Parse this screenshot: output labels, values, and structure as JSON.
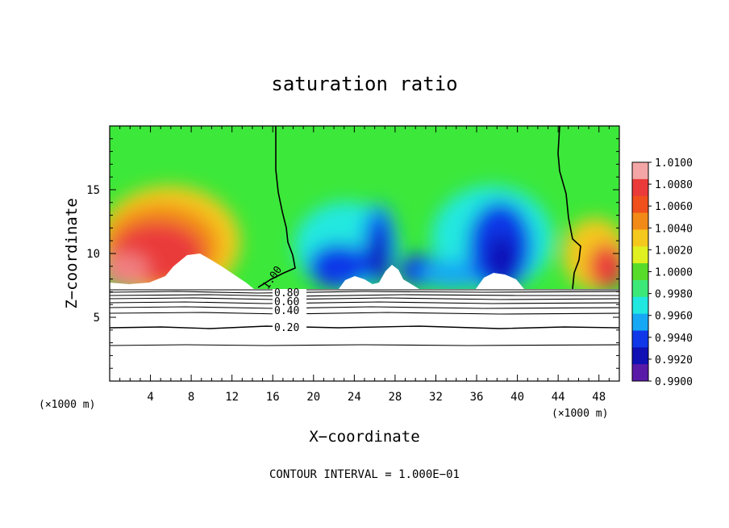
{
  "chart_data": {
    "type": "heatmap",
    "title": "saturation ratio",
    "xlabel": "X−coordinate",
    "ylabel": "Z−coordinate",
    "x_unit": "(×1000 m)",
    "y_unit": "(×1000 m)",
    "xlim": [
      0,
      50
    ],
    "ylim": [
      0,
      20
    ],
    "x_ticks": [
      "4",
      "8",
      "12",
      "16",
      "20",
      "24",
      "28",
      "32",
      "36",
      "40",
      "44",
      "48"
    ],
    "y_ticks": [
      "5",
      "10",
      "15"
    ],
    "colorbar": {
      "min": 0.99,
      "max": 1.01,
      "tick_labels": [
        "1.0100",
        "1.0080",
        "1.0060",
        "1.0040",
        "1.0020",
        "1.0000",
        "0.9980",
        "0.9960",
        "0.9940",
        "0.9920",
        "0.9900"
      ],
      "colors": [
        "#f4a6a6",
        "#ea3a3a",
        "#f0501c",
        "#f28a18",
        "#f5c81e",
        "#e0f020",
        "#58dc2a",
        "#3ce878",
        "#20e8e0",
        "#16a8f4",
        "#1038e8",
        "#1010b4",
        "#5a1aa8"
      ]
    },
    "contour_labels": [
      "1.00",
      "0.80",
      "0.60",
      "0.40",
      "0.20"
    ],
    "contour_levels": [
      0.2,
      0.4,
      0.6,
      0.8,
      1.0
    ],
    "contour_interval_text": "CONTOUR INTERVAL = 1.000E−01",
    "field_regions": [
      {
        "x": [
          1,
          13
        ],
        "z": [
          8,
          16
        ],
        "value": 1.0065,
        "note": "supersaturated plume"
      },
      {
        "x": [
          18,
          27
        ],
        "z": [
          7.5,
          12
        ],
        "value": 0.9925
      },
      {
        "x": [
          27,
          33
        ],
        "z": [
          7.5,
          11
        ],
        "value": 0.995
      },
      {
        "x": [
          33,
          42
        ],
        "z": [
          7.5,
          13
        ],
        "value": 0.9925
      },
      {
        "x": [
          47,
          50
        ],
        "z": [
          8,
          12
        ],
        "value": 1.005
      },
      {
        "x": [
          0,
          50
        ],
        "z": [
          15,
          20
        ],
        "value": 1.0002
      }
    ],
    "cloud_top_z": 7.3
  }
}
